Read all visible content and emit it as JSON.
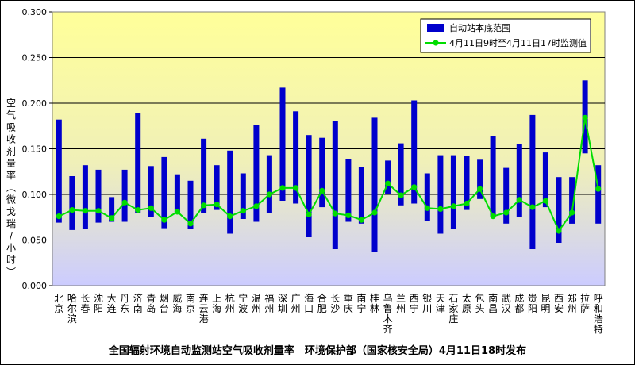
{
  "chart_data": {
    "type": "bar",
    "title": "全国辐射环境自动监测站空气吸收剂量率　环境保护部（国家核安全局）4月11日18时发布",
    "ylabel": "空气吸收剂量率（微戈瑞/小时）",
    "ylim": [
      0,
      0.3
    ],
    "yticks": [
      "0.000",
      "0.050",
      "0.100",
      "0.150",
      "0.200",
      "0.250",
      "0.300"
    ],
    "grid": true,
    "legend_position": "top-right",
    "categories": [
      "北京",
      "哈尔滨",
      "长春",
      "沈阳",
      "大连",
      "丹东",
      "济南",
      "青岛",
      "烟台",
      "威海",
      "南京",
      "连云港",
      "上海",
      "杭州",
      "宁波",
      "温州",
      "福州",
      "深圳",
      "广州",
      "海口",
      "合肥",
      "长沙",
      "重庆",
      "南宁",
      "桂林",
      "乌鲁木齐",
      "兰州",
      "西宁",
      "银川",
      "天津",
      "石家庄",
      "太原",
      "包头",
      "南昌",
      "武汉",
      "成都",
      "贵阳",
      "昆明",
      "西安",
      "郑州",
      "拉萨",
      "呼和浩特"
    ],
    "series": [
      {
        "name": "自动站本底范围",
        "kind": "range-bar",
        "color": "#0000cc",
        "low": [
          0.069,
          0.061,
          0.062,
          0.069,
          0.07,
          0.07,
          0.08,
          0.075,
          0.063,
          0.079,
          0.062,
          0.08,
          0.083,
          0.057,
          0.073,
          0.07,
          0.08,
          0.093,
          0.09,
          0.053,
          0.086,
          0.04,
          0.07,
          0.068,
          0.037,
          0.1,
          0.088,
          0.09,
          0.071,
          0.057,
          0.062,
          0.083,
          0.095,
          0.075,
          0.068,
          0.075,
          0.04,
          0.086,
          0.047,
          0.068,
          0.145,
          0.068
        ],
        "high": [
          0.182,
          0.12,
          0.132,
          0.127,
          0.097,
          0.127,
          0.189,
          0.131,
          0.141,
          0.122,
          0.115,
          0.161,
          0.132,
          0.148,
          0.123,
          0.176,
          0.143,
          0.217,
          0.191,
          0.165,
          0.162,
          0.18,
          0.139,
          0.13,
          0.184,
          0.137,
          0.156,
          0.203,
          0.123,
          0.143,
          0.143,
          0.142,
          0.138,
          0.164,
          0.129,
          0.155,
          0.187,
          0.146,
          0.119,
          0.119,
          0.225,
          0.132
        ]
      },
      {
        "name": "4月11日9时至4月11日17时监测值",
        "kind": "line",
        "color": "#00dd00",
        "values": [
          0.076,
          0.083,
          0.082,
          0.082,
          0.074,
          0.091,
          0.083,
          0.085,
          0.072,
          0.081,
          0.068,
          0.088,
          0.089,
          0.076,
          0.082,
          0.087,
          0.1,
          0.107,
          0.107,
          0.078,
          0.104,
          0.079,
          0.077,
          0.072,
          0.08,
          0.112,
          0.099,
          0.108,
          0.085,
          0.084,
          0.087,
          0.09,
          0.106,
          0.076,
          0.08,
          0.094,
          0.086,
          0.093,
          0.06,
          0.08,
          0.184,
          0.106
        ]
      }
    ],
    "colors": {
      "background_top": "#ffff99",
      "background_bottom": "#ccccff",
      "bar": "#0000cc",
      "line": "#00dd00"
    }
  }
}
